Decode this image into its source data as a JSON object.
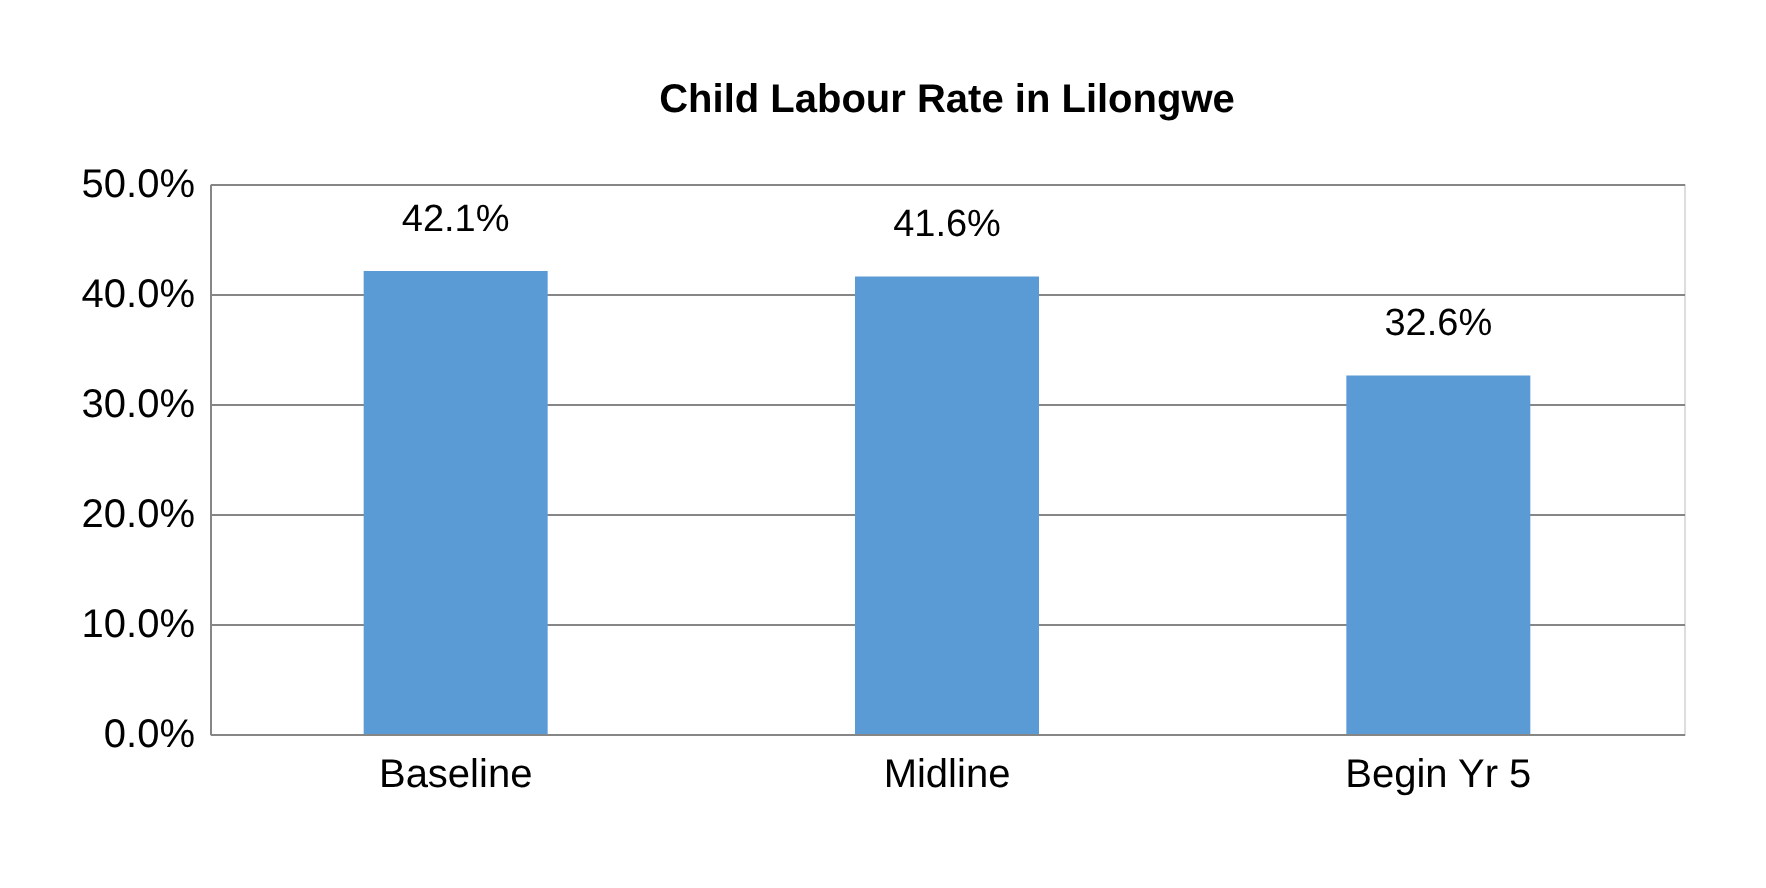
{
  "chart_data": {
    "type": "bar",
    "title": "Child Labour Rate in Lilongwe",
    "categories": [
      "Baseline",
      "Midline",
      "Begin Yr 5"
    ],
    "values": [
      42.1,
      41.6,
      32.6
    ],
    "color": "#5b9bd5",
    "value_labels": [
      "42.1%",
      "41.6%",
      "32.6%"
    ],
    "ylim": [
      0,
      50
    ],
    "yticks": [
      {
        "value": 0,
        "label": "0.0%"
      },
      {
        "value": 10,
        "label": "10.0%"
      },
      {
        "value": 20,
        "label": "20.0%"
      },
      {
        "value": 30,
        "label": "30.0%"
      },
      {
        "value": 40,
        "label": "40.0%"
      },
      {
        "value": 50,
        "label": "50.0%"
      }
    ],
    "grid": "y"
  }
}
